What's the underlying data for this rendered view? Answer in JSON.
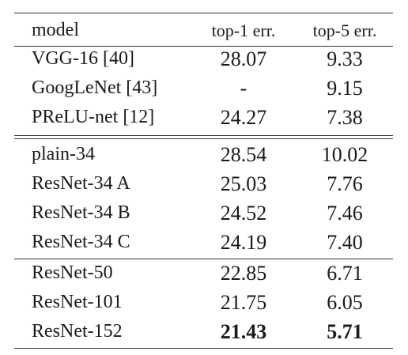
{
  "table": {
    "headers": [
      "model",
      "top-1 err.",
      "top-5 err."
    ],
    "groups": [
      {
        "rows": [
          {
            "model": "VGG-16 [40]",
            "top1": "28.07",
            "top5": "9.33"
          },
          {
            "model": "GoogLeNet [43]",
            "top1": "-",
            "top5": "9.15"
          },
          {
            "model": "PReLU-net [12]",
            "top1": "24.27",
            "top5": "7.38"
          }
        ]
      },
      {
        "rows": [
          {
            "model": "plain-34",
            "top1": "28.54",
            "top5": "10.02"
          },
          {
            "model": "ResNet-34 A",
            "top1": "25.03",
            "top5": "7.76"
          },
          {
            "model": "ResNet-34 B",
            "top1": "24.52",
            "top5": "7.46"
          },
          {
            "model": "ResNet-34 C",
            "top1": "24.19",
            "top5": "7.40"
          }
        ]
      },
      {
        "rows": [
          {
            "model": "ResNet-50",
            "top1": "22.85",
            "top5": "6.71"
          },
          {
            "model": "ResNet-101",
            "top1": "21.75",
            "top5": "6.05"
          },
          {
            "model": "ResNet-152",
            "top1": "21.43",
            "top5": "5.71",
            "bold": true
          }
        ]
      }
    ]
  }
}
